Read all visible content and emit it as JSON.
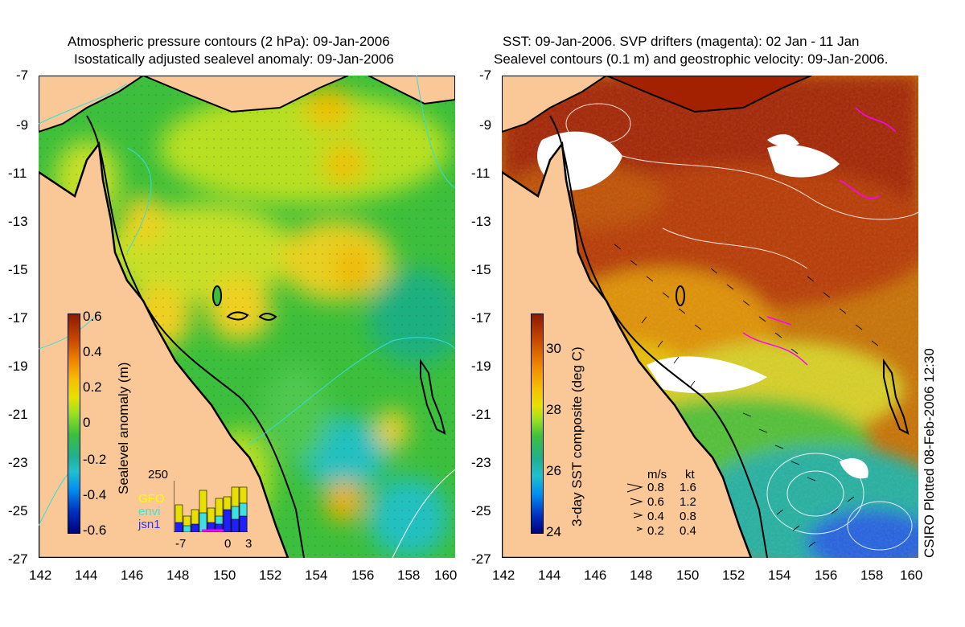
{
  "left_panel": {
    "title_line1": "Atmospheric pressure contours (2 hPa): 09-Jan-2006",
    "title_line2": "Isostatically adjusted sealevel anomaly: 09-Jan-2006",
    "colorbar_label": "Sealevel anomaly (m)",
    "colorbar_ticks": [
      "0.6",
      "0.4",
      "0.2",
      "0",
      "-0.2",
      "-0.4",
      "-0.6"
    ],
    "inset": {
      "ymax_label": "250",
      "satellites": [
        "GFO",
        "envi",
        "jsn1"
      ],
      "satellite_colors": [
        "#ffff00",
        "#40e0e0",
        "#2020ff"
      ],
      "x_ticks": [
        "-7",
        "0",
        "3"
      ]
    }
  },
  "right_panel": {
    "title_line1": "SST: 09-Jan-2006. SVP drifters (magenta): 02 Jan - 11 Jan",
    "title_line2": "Sealevel contours (0.1 m) and geostrophic velocity: 09-Jan-2006.",
    "colorbar_label": "3-day SST composite (deg C)",
    "colorbar_ticks": [
      "30",
      "28",
      "26",
      "24"
    ],
    "velocity_legend": {
      "headers": [
        "m/s",
        "kt"
      ],
      "rows": [
        [
          "0.8",
          "1.6"
        ],
        [
          "0.6",
          "1.2"
        ],
        [
          "0.4",
          "0.8"
        ],
        [
          "0.2",
          "0.4"
        ]
      ]
    },
    "credit": "CSIRO Plotted 08-Feb-2006 12:30"
  },
  "lat_ticks": [
    "-7",
    "-9",
    "-11",
    "-13",
    "-15",
    "-17",
    "-19",
    "-21",
    "-23",
    "-25",
    "-27"
  ],
  "lon_ticks": [
    "142",
    "144",
    "146",
    "148",
    "150",
    "152",
    "154",
    "156",
    "158",
    "160"
  ],
  "colors": {
    "land": "#f9c896",
    "coast": "#000000",
    "drifter": "#ff00ff"
  }
}
